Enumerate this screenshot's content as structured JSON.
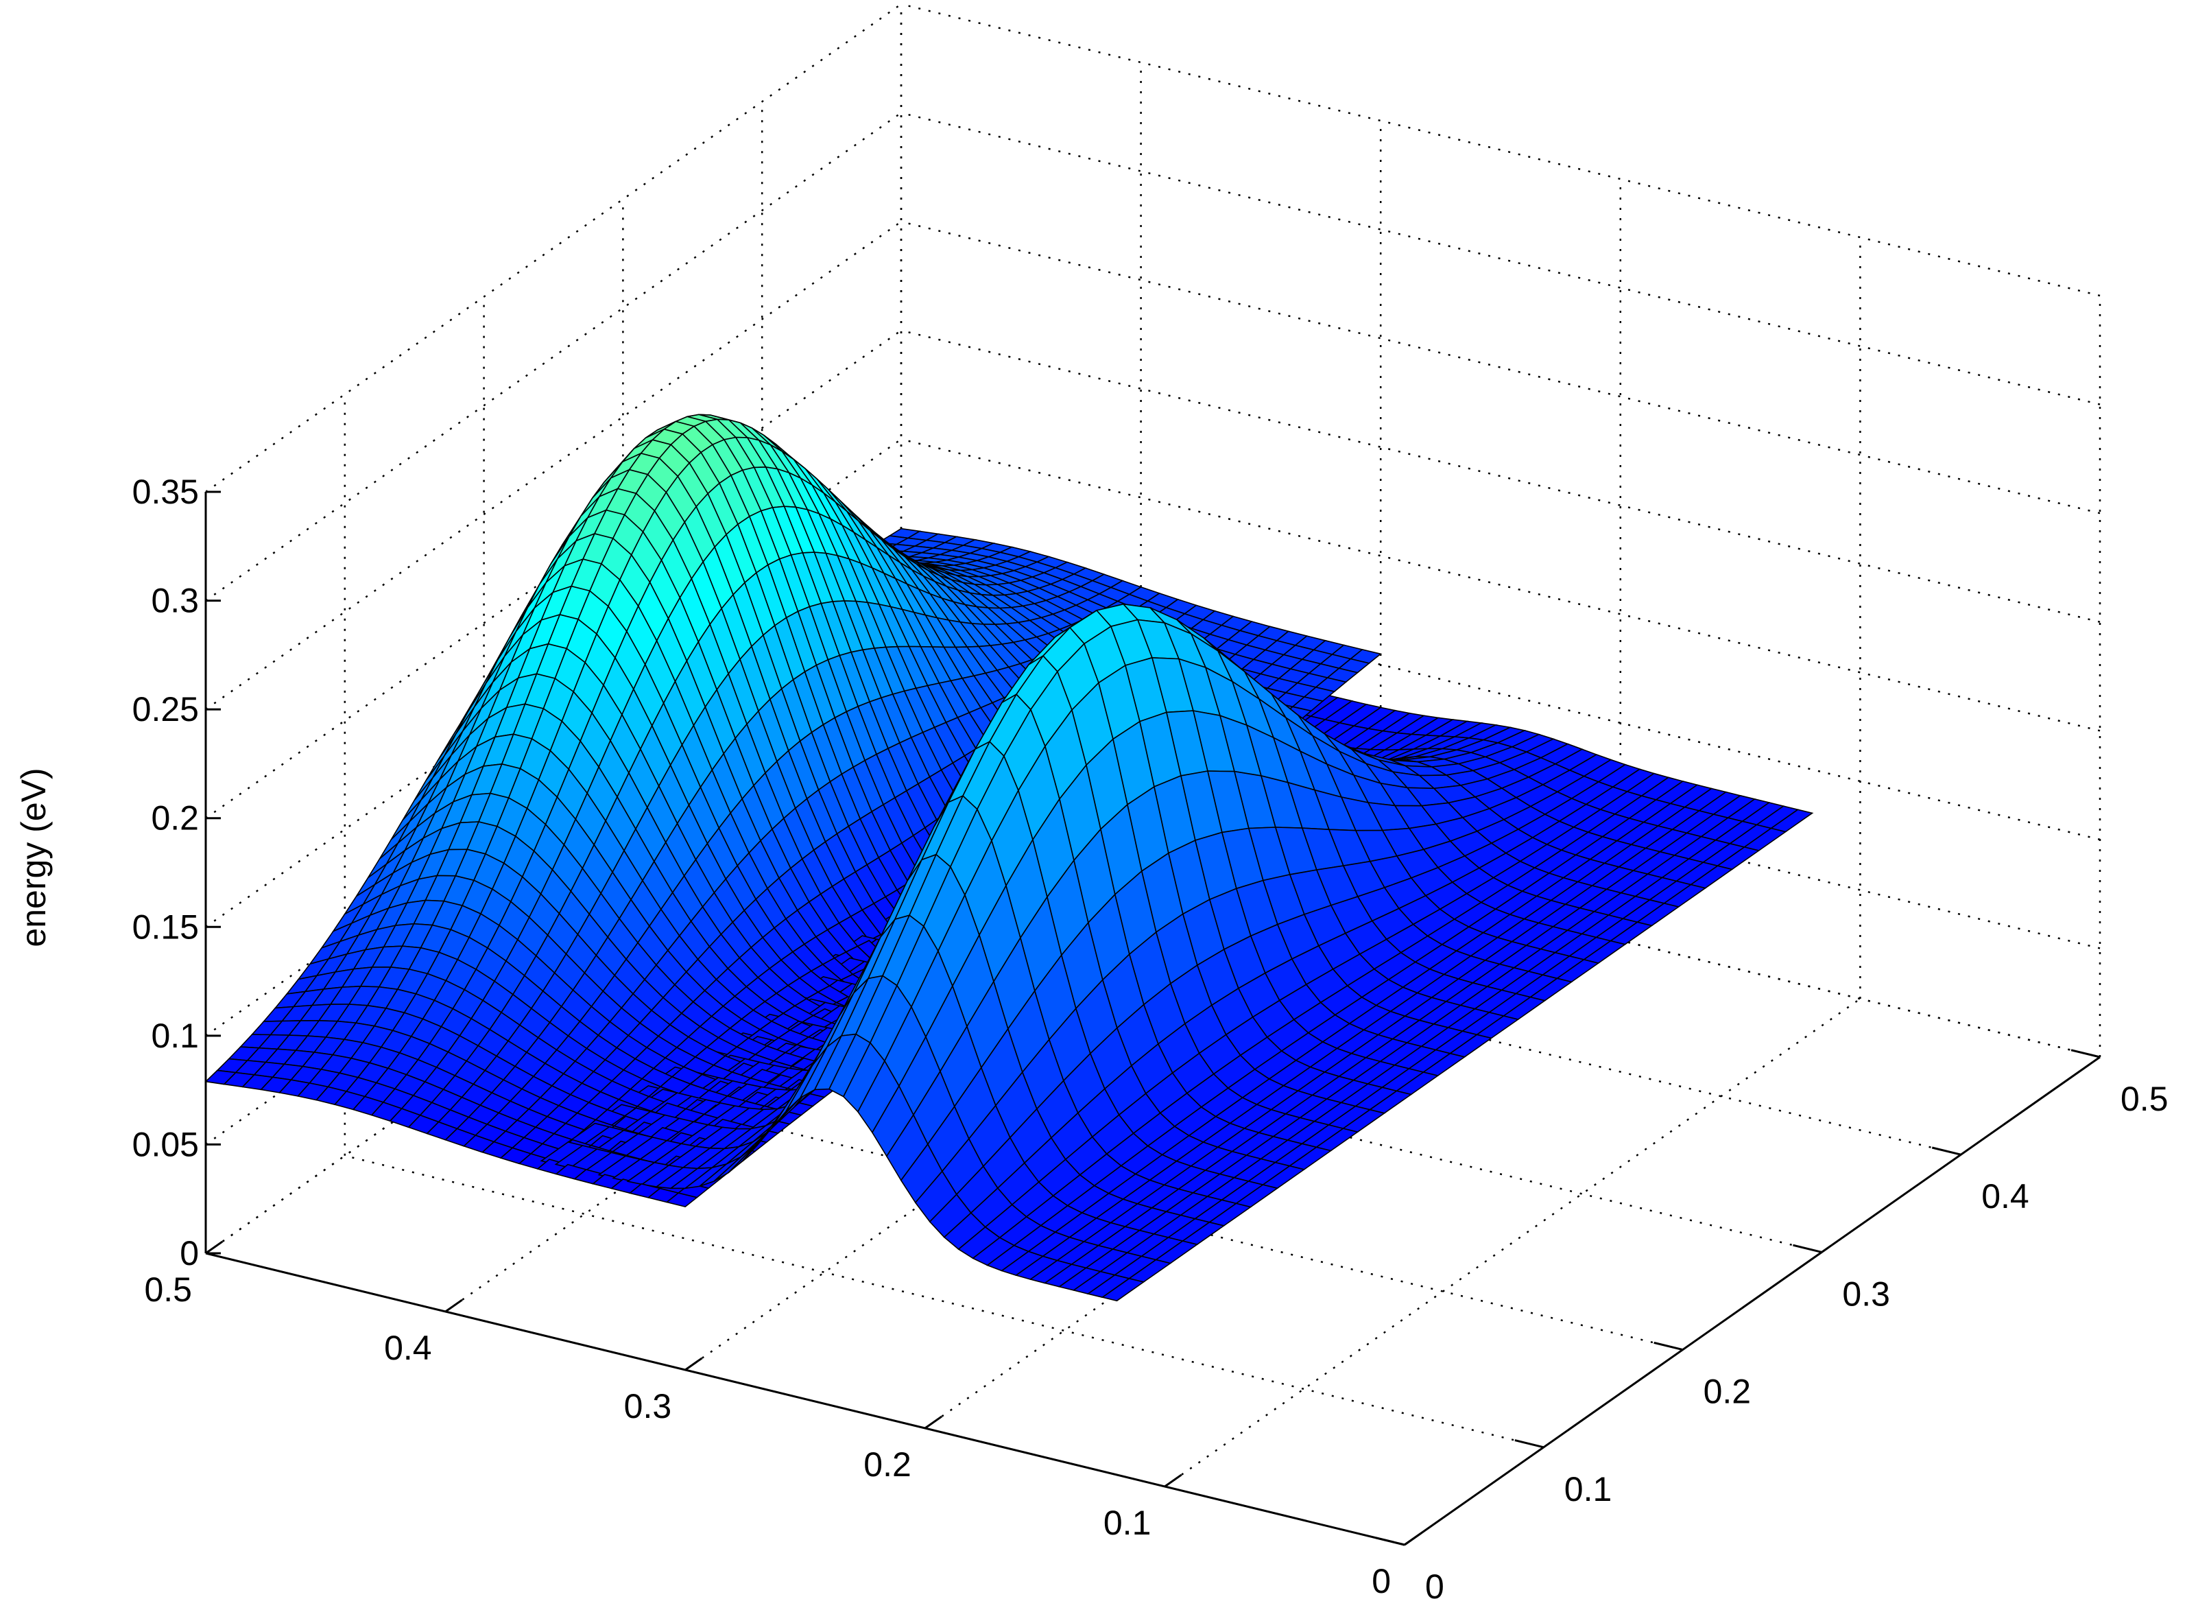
{
  "chart_data": {
    "type": "surface",
    "title": "",
    "zlabel": "energy (eV)",
    "xlabel": "",
    "ylabel": "",
    "xlim": [
      0,
      0.5
    ],
    "ylim": [
      0,
      0.5
    ],
    "zlim": [
      0,
      0.35
    ],
    "x_ticks": [
      "0",
      "0.1",
      "0.2",
      "0.3",
      "0.4",
      "0.5"
    ],
    "y_ticks": [
      "0",
      "0.1",
      "0.2",
      "0.3",
      "0.4",
      "0.5"
    ],
    "z_ticks": [
      "0",
      "0.05",
      "0.1",
      "0.15",
      "0.2",
      "0.25",
      "0.3",
      "0.35"
    ],
    "grid": true,
    "colormap": "jet",
    "surfaces": [
      {
        "name": "",
        "description_points": [
          {
            "x": 0.0,
            "y": 0.5,
            "z": 0.055
          },
          {
            "x": 0.25,
            "y": 0.45,
            "z": 0.26
          },
          {
            "x": 0.5,
            "y": 0.4,
            "z": 0.08
          },
          {
            "x": 0.5,
            "y": 0.0,
            "z": 0.11
          }
        ]
      },
      {
        "name": "",
        "description_points": [
          {
            "x": 0.5,
            "y": 0.35,
            "z": 0.0
          },
          {
            "x": 0.25,
            "y": 0.25,
            "z": 0.27
          },
          {
            "x": 0.0,
            "y": 0.25,
            "z": 0.1
          }
        ]
      }
    ]
  }
}
